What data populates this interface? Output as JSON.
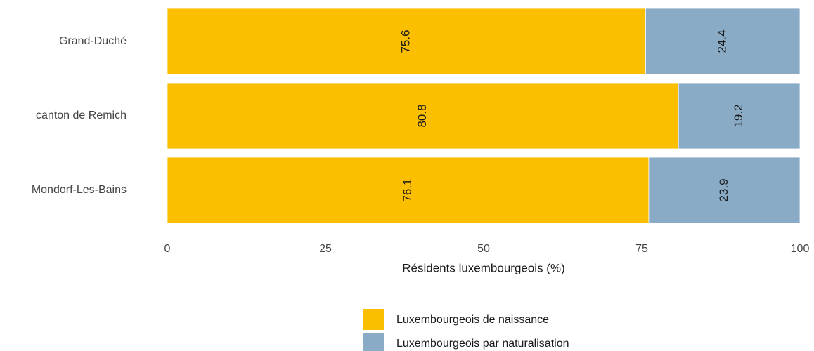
{
  "chart_data": {
    "type": "bar",
    "orientation": "horizontal",
    "stacked": true,
    "x_label": "Résidents luxembourgeois (%)",
    "categories": [
      "Grand-Duché",
      "canton de Remich",
      "Mondorf-Les-Bains"
    ],
    "series": [
      {
        "name": "Luxembourgeois de naissance",
        "color": "#fcbf00",
        "values": [
          75.6,
          80.8,
          76.1
        ]
      },
      {
        "name": "Luxembourgeois par naturalisation",
        "color": "#8aabc6",
        "values": [
          24.4,
          19.2,
          23.9
        ]
      }
    ],
    "xlim": [
      0,
      100
    ],
    "xticks": [
      0,
      25,
      50,
      75,
      100
    ],
    "grid": false,
    "legend": "bottom"
  }
}
